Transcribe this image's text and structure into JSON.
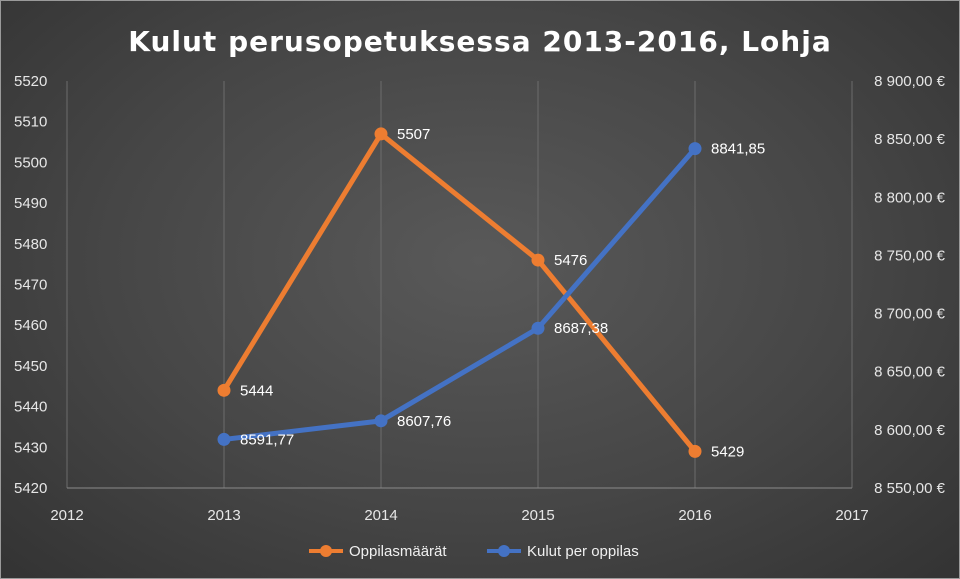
{
  "chart_data": {
    "type": "line",
    "title": "Kulut perusopetuksessa 2013-2016, Lohja",
    "x": [
      2013,
      2014,
      2015,
      2016
    ],
    "xlim": [
      2012,
      2017
    ],
    "x_ticks": [
      "2012",
      "2013",
      "2014",
      "2015",
      "2016",
      "2017"
    ],
    "y_left_lim": [
      5420,
      5520
    ],
    "y_left_ticks": [
      "5420",
      "5430",
      "5440",
      "5450",
      "5460",
      "5470",
      "5480",
      "5490",
      "5500",
      "5510",
      "5520"
    ],
    "y_right_lim": [
      8550,
      8900
    ],
    "y_right_ticks": [
      "8 550,00 €",
      "8 600,00 €",
      "8 650,00 €",
      "8 700,00 €",
      "8 750,00 €",
      "8 800,00 €",
      "8 850,00 €",
      "8 900,00 €"
    ],
    "grid": "vertical",
    "legend_position": "bottom",
    "series": [
      {
        "name": "Oppilasmäärät",
        "axis": "left",
        "color": "#ed7d31",
        "values": [
          5444,
          5507,
          5476,
          5429
        ],
        "labels": [
          "5444",
          "5507",
          "5476",
          "5429"
        ]
      },
      {
        "name": "Kulut per oppilas",
        "axis": "right",
        "color": "#4472c4",
        "values": [
          8591.77,
          8607.76,
          8687.38,
          8841.85
        ],
        "labels": [
          "8591,77",
          "8607,76",
          "8687,38",
          "8841,85"
        ]
      }
    ]
  }
}
